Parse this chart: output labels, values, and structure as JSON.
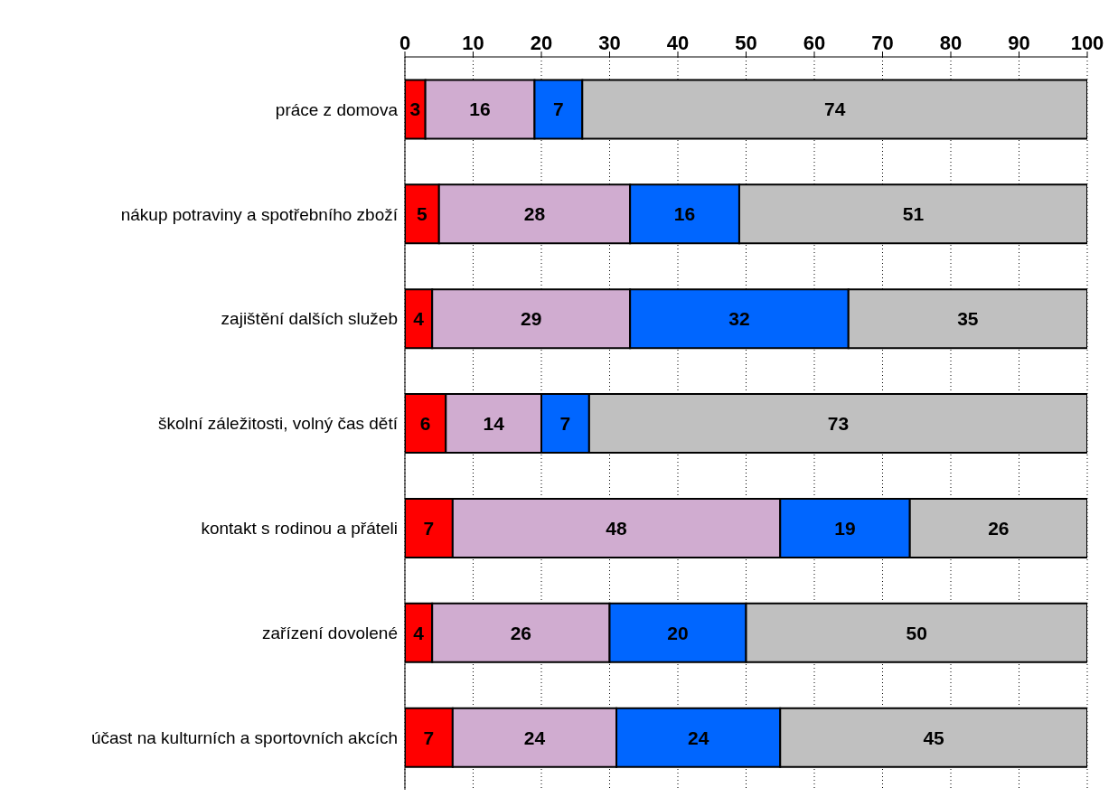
{
  "chart_data": {
    "type": "bar",
    "orientation": "horizontal",
    "stacked": true,
    "categories": [
      "práce z domova",
      "nákup potraviny a spotřebního zboží",
      "zajištění dalších služeb",
      "školní záležitosti, volný čas dětí",
      "kontakt s rodinou a přáteli",
      "zařízení dovolené",
      "účast na kulturních a sportovních akcích"
    ],
    "series": [
      {
        "color": "#ff0000",
        "values": [
          3,
          5,
          4,
          6,
          7,
          4,
          7
        ]
      },
      {
        "color": "#d0acd0",
        "values": [
          16,
          28,
          29,
          14,
          48,
          26,
          24
        ]
      },
      {
        "color": "#0066ff",
        "values": [
          7,
          16,
          32,
          7,
          19,
          20,
          24
        ]
      },
      {
        "color": "#c0c0c0",
        "values": [
          74,
          51,
          35,
          73,
          26,
          50,
          45
        ]
      }
    ],
    "xlim": [
      0,
      100
    ],
    "xticks": [
      0,
      10,
      20,
      30,
      40,
      50,
      60,
      70,
      80,
      90,
      100
    ],
    "grid": "x",
    "legend": false,
    "data_labels": true
  }
}
